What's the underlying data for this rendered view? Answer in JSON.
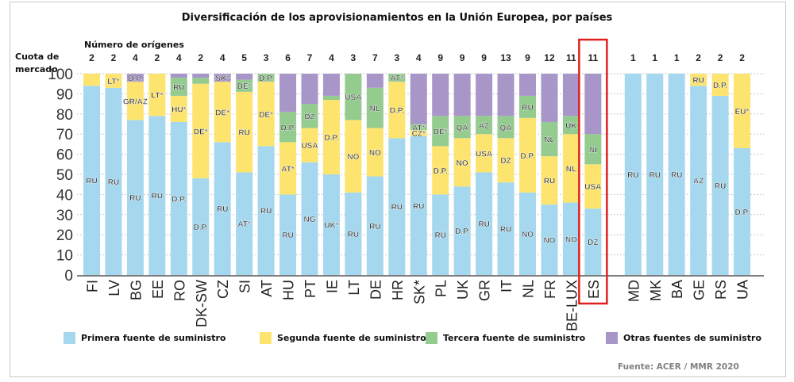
{
  "chart_data": {
    "type": "bar",
    "stacked": true,
    "title": "Diversificación de los aprovisionamientos en la Unión Europea, por países",
    "ylabel": "Cuota de mercado",
    "top_label": "Número de orígenes",
    "ylim": [
      0,
      100
    ],
    "yticks": [
      0,
      10,
      20,
      30,
      40,
      50,
      60,
      70,
      80,
      90,
      100
    ],
    "grid": true,
    "highlighted_category": "ES",
    "highlight_color": "#e02020",
    "legend_position": "bottom",
    "source": "Fuente: ACER / MMR 2020",
    "series": [
      {
        "name": "Primera fuente de suministro",
        "color": "#a5d8ef"
      },
      {
        "name": "Segunda fuente de suministro",
        "color": "#fde46f"
      },
      {
        "name": "Tercera fuente de suministro",
        "color": "#94cb8f"
      },
      {
        "name": "Otras fuentes de suministro",
        "color": "#a996c8"
      }
    ],
    "categories": [
      {
        "name": "FI",
        "origins": "2",
        "values": [
          94,
          6,
          0,
          0
        ],
        "labels": [
          "RU",
          "",
          "",
          ""
        ]
      },
      {
        "name": "LV",
        "origins": "2",
        "values": [
          93,
          7,
          0,
          0
        ],
        "labels": [
          "RU",
          "LT*",
          "",
          ""
        ]
      },
      {
        "name": "BG",
        "origins": "4",
        "values": [
          77,
          19,
          0,
          4
        ],
        "labels": [
          "RU",
          "GR/AZ",
          "",
          "D.P."
        ]
      },
      {
        "name": "EE",
        "origins": "2",
        "values": [
          79,
          21,
          0,
          0
        ],
        "labels": [
          "RU",
          "LT*",
          "",
          ""
        ]
      },
      {
        "name": "RO",
        "origins": "4",
        "values": [
          76,
          13,
          9,
          2
        ],
        "labels": [
          "D.P.",
          "HU*",
          "RU",
          ""
        ]
      },
      {
        "name": "DK-SW",
        "origins": "2",
        "values": [
          48,
          47,
          3,
          2
        ],
        "labels": [
          "D.P.",
          "DE*",
          "",
          ""
        ]
      },
      {
        "name": "CZ",
        "origins": "4",
        "values": [
          66,
          30,
          0,
          4
        ],
        "labels": [
          "RU",
          "DE*",
          "",
          "SK*"
        ]
      },
      {
        "name": "SI",
        "origins": "5",
        "values": [
          51,
          40,
          6,
          3
        ],
        "labels": [
          "AT*",
          "RU",
          "DE*",
          ""
        ]
      },
      {
        "name": "AT",
        "origins": "3",
        "values": [
          64,
          32,
          4,
          0
        ],
        "labels": [
          "RU",
          "DE*",
          "D.P.",
          ""
        ]
      },
      {
        "name": "HU",
        "origins": "6",
        "values": [
          40,
          26,
          15,
          19
        ],
        "labels": [
          "RU",
          "AT*",
          "D.P.",
          ""
        ]
      },
      {
        "name": "PT",
        "origins": "7",
        "values": [
          56,
          17,
          12,
          15
        ],
        "labels": [
          "NG",
          "USA",
          "DZ",
          ""
        ]
      },
      {
        "name": "IE",
        "origins": "4",
        "values": [
          50,
          37,
          2,
          11
        ],
        "labels": [
          "UK*",
          "D.P.",
          "",
          ""
        ]
      },
      {
        "name": "LT",
        "origins": "3",
        "values": [
          41,
          36,
          23,
          0
        ],
        "labels": [
          "RU",
          "NO",
          "USA",
          ""
        ]
      },
      {
        "name": "DE",
        "origins": "7",
        "values": [
          49,
          24,
          20,
          7
        ],
        "labels": [
          "RU",
          "NO",
          "NL",
          ""
        ]
      },
      {
        "name": "HR",
        "origins": "3",
        "values": [
          68,
          28,
          4,
          0
        ],
        "labels": [
          "RU",
          "D.P.",
          "AT*",
          ""
        ]
      },
      {
        "name": "SK*",
        "origins": "4",
        "values": [
          69,
          3,
          3,
          25
        ],
        "labels": [
          "RU",
          "CZ*",
          "AT*",
          ""
        ]
      },
      {
        "name": "PL",
        "origins": "9",
        "values": [
          40,
          24,
          15,
          21
        ],
        "labels": [
          "RU",
          "D.P.",
          "DE*",
          ""
        ]
      },
      {
        "name": "UK",
        "origins": "9",
        "values": [
          44,
          24,
          11,
          21
        ],
        "labels": [
          "D.P.",
          "NO",
          "QA",
          ""
        ]
      },
      {
        "name": "GR",
        "origins": "9",
        "values": [
          51,
          19,
          9,
          21
        ],
        "labels": [
          "RU",
          "USA",
          "AZ",
          ""
        ]
      },
      {
        "name": "IT",
        "origins": "13",
        "values": [
          46,
          22,
          11,
          21
        ],
        "labels": [
          "RU",
          "DZ",
          "QA",
          ""
        ]
      },
      {
        "name": "NL",
        "origins": "9",
        "values": [
          41,
          37,
          11,
          11
        ],
        "labels": [
          "NO",
          "D.P.",
          "RU",
          ""
        ]
      },
      {
        "name": "FR",
        "origins": "12",
        "values": [
          35,
          24,
          17,
          24
        ],
        "labels": [
          "NO",
          "RU",
          "NL",
          ""
        ]
      },
      {
        "name": "BE-LUX",
        "origins": "11",
        "values": [
          36,
          34,
          9,
          21
        ],
        "labels": [
          "NO",
          "NL",
          "UK",
          ""
        ]
      },
      {
        "name": "ES",
        "origins": "11",
        "values": [
          33,
          22,
          15,
          30
        ],
        "labels": [
          "DZ",
          "USA",
          "NI",
          ""
        ]
      },
      {
        "name": "MD",
        "origins": "1",
        "values": [
          100,
          0,
          0,
          0
        ],
        "labels": [
          "RU",
          "",
          "",
          ""
        ]
      },
      {
        "name": "MK",
        "origins": "1",
        "values": [
          100,
          0,
          0,
          0
        ],
        "labels": [
          "RU",
          "",
          "",
          ""
        ]
      },
      {
        "name": "BA",
        "origins": "1",
        "values": [
          100,
          0,
          0,
          0
        ],
        "labels": [
          "RU",
          "",
          "",
          ""
        ]
      },
      {
        "name": "GE",
        "origins": "2",
        "values": [
          94,
          6,
          0,
          0
        ],
        "labels": [
          "AZ",
          "RU",
          "",
          ""
        ]
      },
      {
        "name": "RS",
        "origins": "2",
        "values": [
          89,
          11,
          0,
          0
        ],
        "labels": [
          "RU",
          "D.P.",
          "",
          ""
        ]
      },
      {
        "name": "UA",
        "origins": "2",
        "values": [
          63,
          37,
          0,
          0
        ],
        "labels": [
          "D.P.",
          "EU*",
          "",
          ""
        ]
      }
    ]
  },
  "labels": {
    "title": "Diversificación de los aprovisionamientos en la Unión Europea, por países",
    "origins_header": "Número de orígenes",
    "ylabel_line1": "Cuota de",
    "ylabel_line2": "mercado",
    "source": "Fuente: ACER / MMR 2020",
    "legend": [
      "Primera fuente de suministro",
      "Segunda fuente de suministro",
      "Tercera fuente de suministro",
      "Otras fuentes de suministro"
    ]
  }
}
